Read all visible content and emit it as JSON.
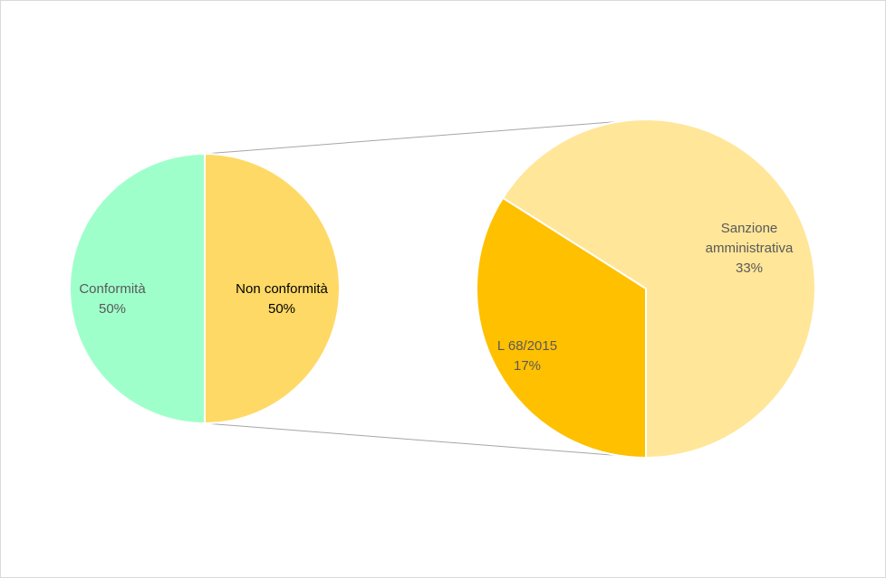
{
  "chart_data": {
    "type": "pie",
    "categories": [
      "Conformità",
      "Non conformità"
    ],
    "values": [
      50,
      50
    ],
    "value_labels": [
      "50%",
      "50%"
    ],
    "colors": [
      "#9fffcb",
      "#ffd966"
    ],
    "breakdown": {
      "categories": [
        "Sanzione amministrativa",
        "L 68/2015"
      ],
      "values": [
        33,
        17
      ],
      "value_labels": [
        "33%",
        "17%"
      ],
      "colors": [
        "#ffe699",
        "#ffc000"
      ]
    }
  }
}
